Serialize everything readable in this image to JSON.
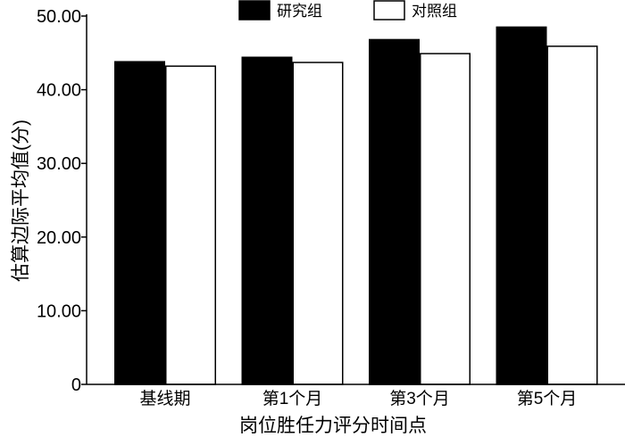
{
  "chart_data": {
    "type": "bar",
    "title": "",
    "xlabel": "岗位胜任力评分时间点",
    "ylabel": "估算边际平均值(分)",
    "categories": [
      "基线期",
      "第1个月",
      "第3个月",
      "第5个月"
    ],
    "series": [
      {
        "name": "研究组",
        "values": [
          43.8,
          44.4,
          46.8,
          48.5
        ],
        "color": "#000000"
      },
      {
        "name": "对照组",
        "values": [
          43.2,
          43.7,
          44.9,
          45.9
        ],
        "color": "#ffffff"
      }
    ],
    "ylim": [
      0,
      50
    ],
    "yticks": [
      0,
      10,
      20,
      30,
      40,
      50
    ],
    "ytick_labels": [
      "0",
      "10.00",
      "20.00",
      "30.00",
      "40.00",
      "50.00"
    ],
    "grid": false,
    "legend_position": "top-center"
  }
}
